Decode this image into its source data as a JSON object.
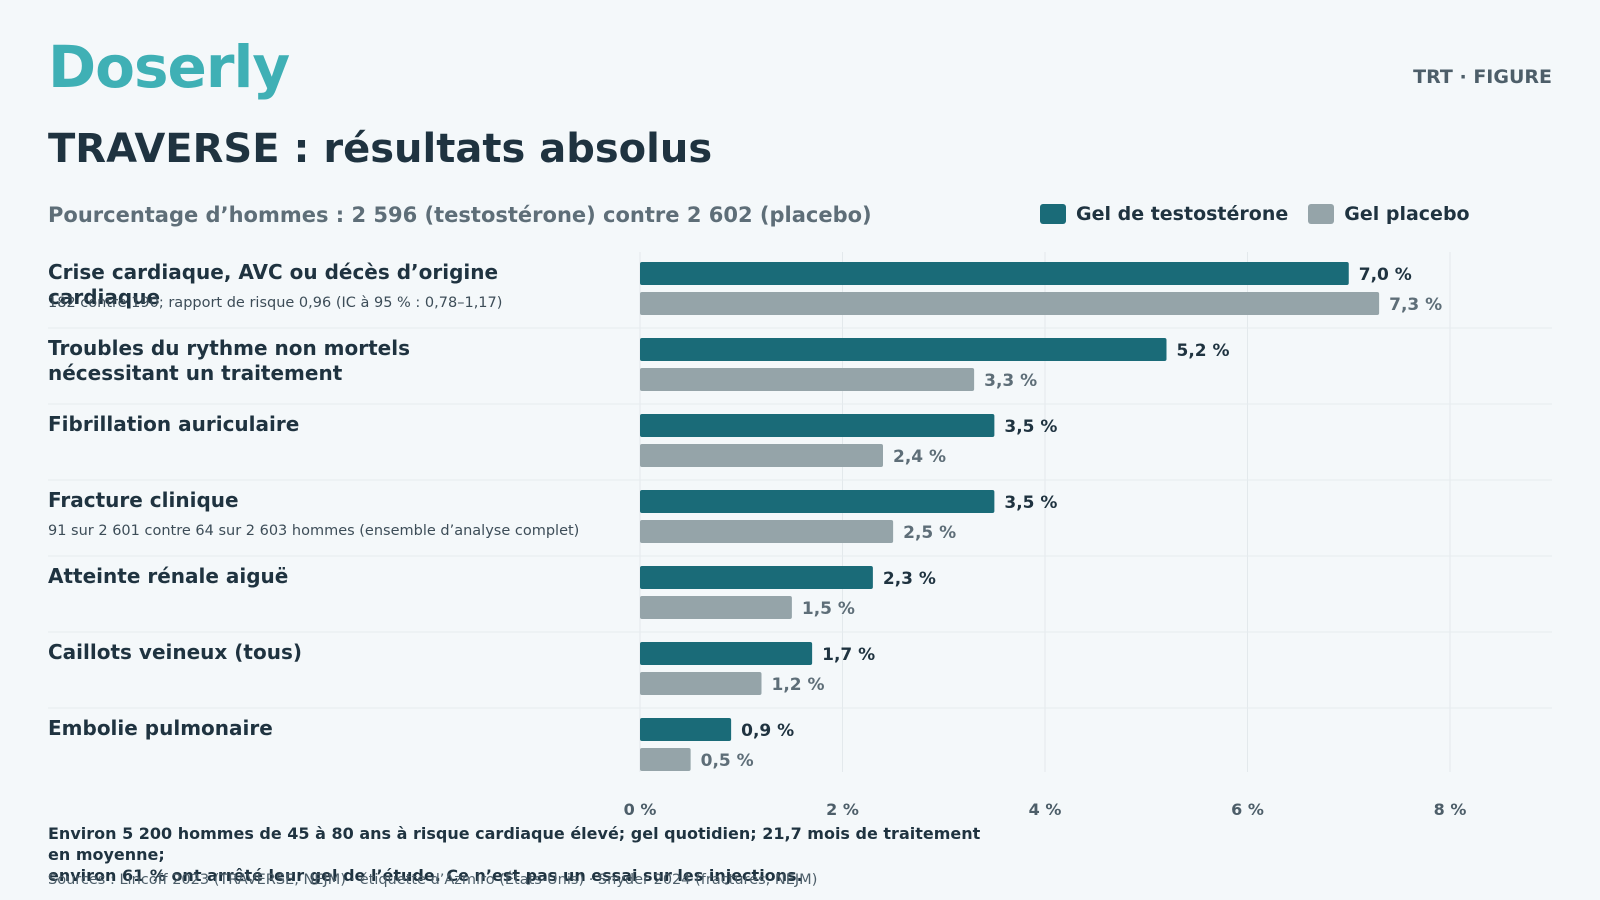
{
  "brand": "Doserly",
  "corner_label": "TRT · FIGURE",
  "title": "TRAVERSE : résultats absolus",
  "subtitle": "Pourcentage d’hommes : 2 596 (testostérone) contre 2 602 (placebo)",
  "legend": {
    "testosterone": "Gel de testostérone",
    "placebo": "Gel placebo"
  },
  "colors": {
    "testosterone": "#1a6b78",
    "placebo": "#95a4a9",
    "gridline": "#e3e9ec",
    "separator": "#e6ecef"
  },
  "chart_data": {
    "type": "bar",
    "orientation": "horizontal",
    "categories": [
      "Crise cardiaque, AVC ou décès d’origine cardiaque",
      "Troubles du rythme non mortels nécessitant un traitement",
      "Fibrillation auriculaire",
      "Fracture clinique",
      "Atteinte rénale aiguë",
      "Caillots veineux (tous)",
      "Embolie pulmonaire"
    ],
    "category_lines": [
      [
        "Crise cardiaque, AVC ou décès d’origine cardiaque"
      ],
      [
        "Troubles du rythme non mortels",
        "nécessitant un traitement"
      ],
      [
        "Fibrillation auriculaire"
      ],
      [
        "Fracture clinique"
      ],
      [
        "Atteinte rénale aiguë"
      ],
      [
        "Caillots veineux (tous)"
      ],
      [
        "Embolie pulmonaire"
      ]
    ],
    "notes": [
      "182 contre 190; rapport de risque 0,96 (IC à 95 % : 0,78–1,17)",
      "",
      "",
      "91 sur 2 601 contre 64 sur 2 603 hommes (ensemble d’analyse complet)",
      "",
      "",
      ""
    ],
    "series": [
      {
        "name": "Gel de testostérone",
        "values": [
          7.0,
          5.2,
          3.5,
          3.5,
          2.3,
          1.7,
          0.9
        ],
        "labels": [
          "7,0 %",
          "5,2 %",
          "3,5 %",
          "3,5 %",
          "2,3 %",
          "1,7 %",
          "0,9 %"
        ]
      },
      {
        "name": "Gel placebo",
        "values": [
          7.3,
          3.3,
          2.4,
          2.5,
          1.5,
          1.2,
          0.5
        ],
        "labels": [
          "7,3 %",
          "3,3 %",
          "2,4 %",
          "2,5 %",
          "1,5 %",
          "1,2 %",
          "0,5 %"
        ]
      }
    ],
    "xlim": [
      0,
      8
    ],
    "xticks": [
      0,
      2,
      4,
      6,
      8
    ],
    "xtick_labels": [
      "0 %",
      "2 %",
      "4 %",
      "6 %",
      "8 %"
    ],
    "grid": true,
    "legend_position": "top-right"
  },
  "footnote_lines": [
    "Environ 5 200 hommes de 45 à 80 ans à risque cardiaque élevé; gel quotidien; 21,7 mois de traitement en moyenne;",
    "environ 61 % ont arrêté leur gel de l’étude. Ce n’est pas un essai sur les injections."
  ],
  "sources": "Sources : Lincoff 2023 (TRAVERSE, NEJM) · étiquette d’Azmiro (États-Unis) · Snyder 2024 (fractures, NEJM)"
}
